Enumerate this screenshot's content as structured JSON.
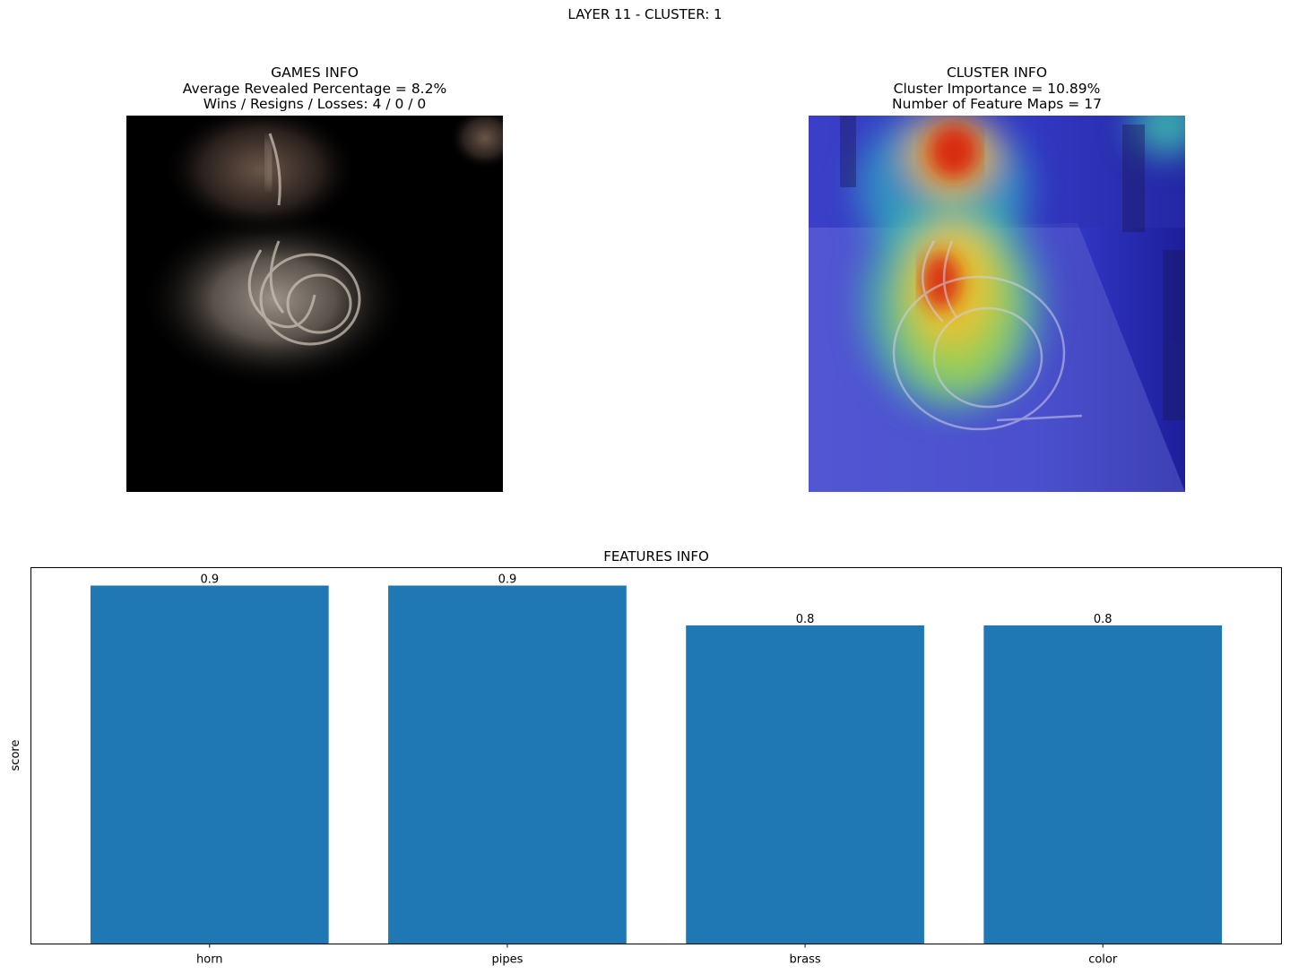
{
  "figure": {
    "suptitle": "LAYER 11 - CLUSTER: 1"
  },
  "games_info": {
    "title": "GAMES INFO",
    "line1": "Average Revealed Percentage = 8.2%",
    "line2": "Wins / Resigns / Losses: 4 / 0 / 0"
  },
  "cluster_info": {
    "title": "CLUSTER INFO",
    "line1": "Cluster Importance = 10.89%",
    "line2": "Number of Feature Maps = 17"
  },
  "colors": {
    "bar": "#1f77b4",
    "heat_background": "#3a3fd0"
  },
  "chart_data": {
    "type": "bar",
    "title": "FEATURES INFO",
    "xlabel": "",
    "ylabel": "score",
    "categories": [
      "horn",
      "pipes",
      "brass",
      "color"
    ],
    "values": [
      0.9,
      0.9,
      0.8,
      0.8
    ],
    "data_labels": [
      "0.9",
      "0.9",
      "0.8",
      "0.8"
    ],
    "ylim": [
      0,
      0.945
    ],
    "y_ticks_visible": false,
    "grid": false
  }
}
